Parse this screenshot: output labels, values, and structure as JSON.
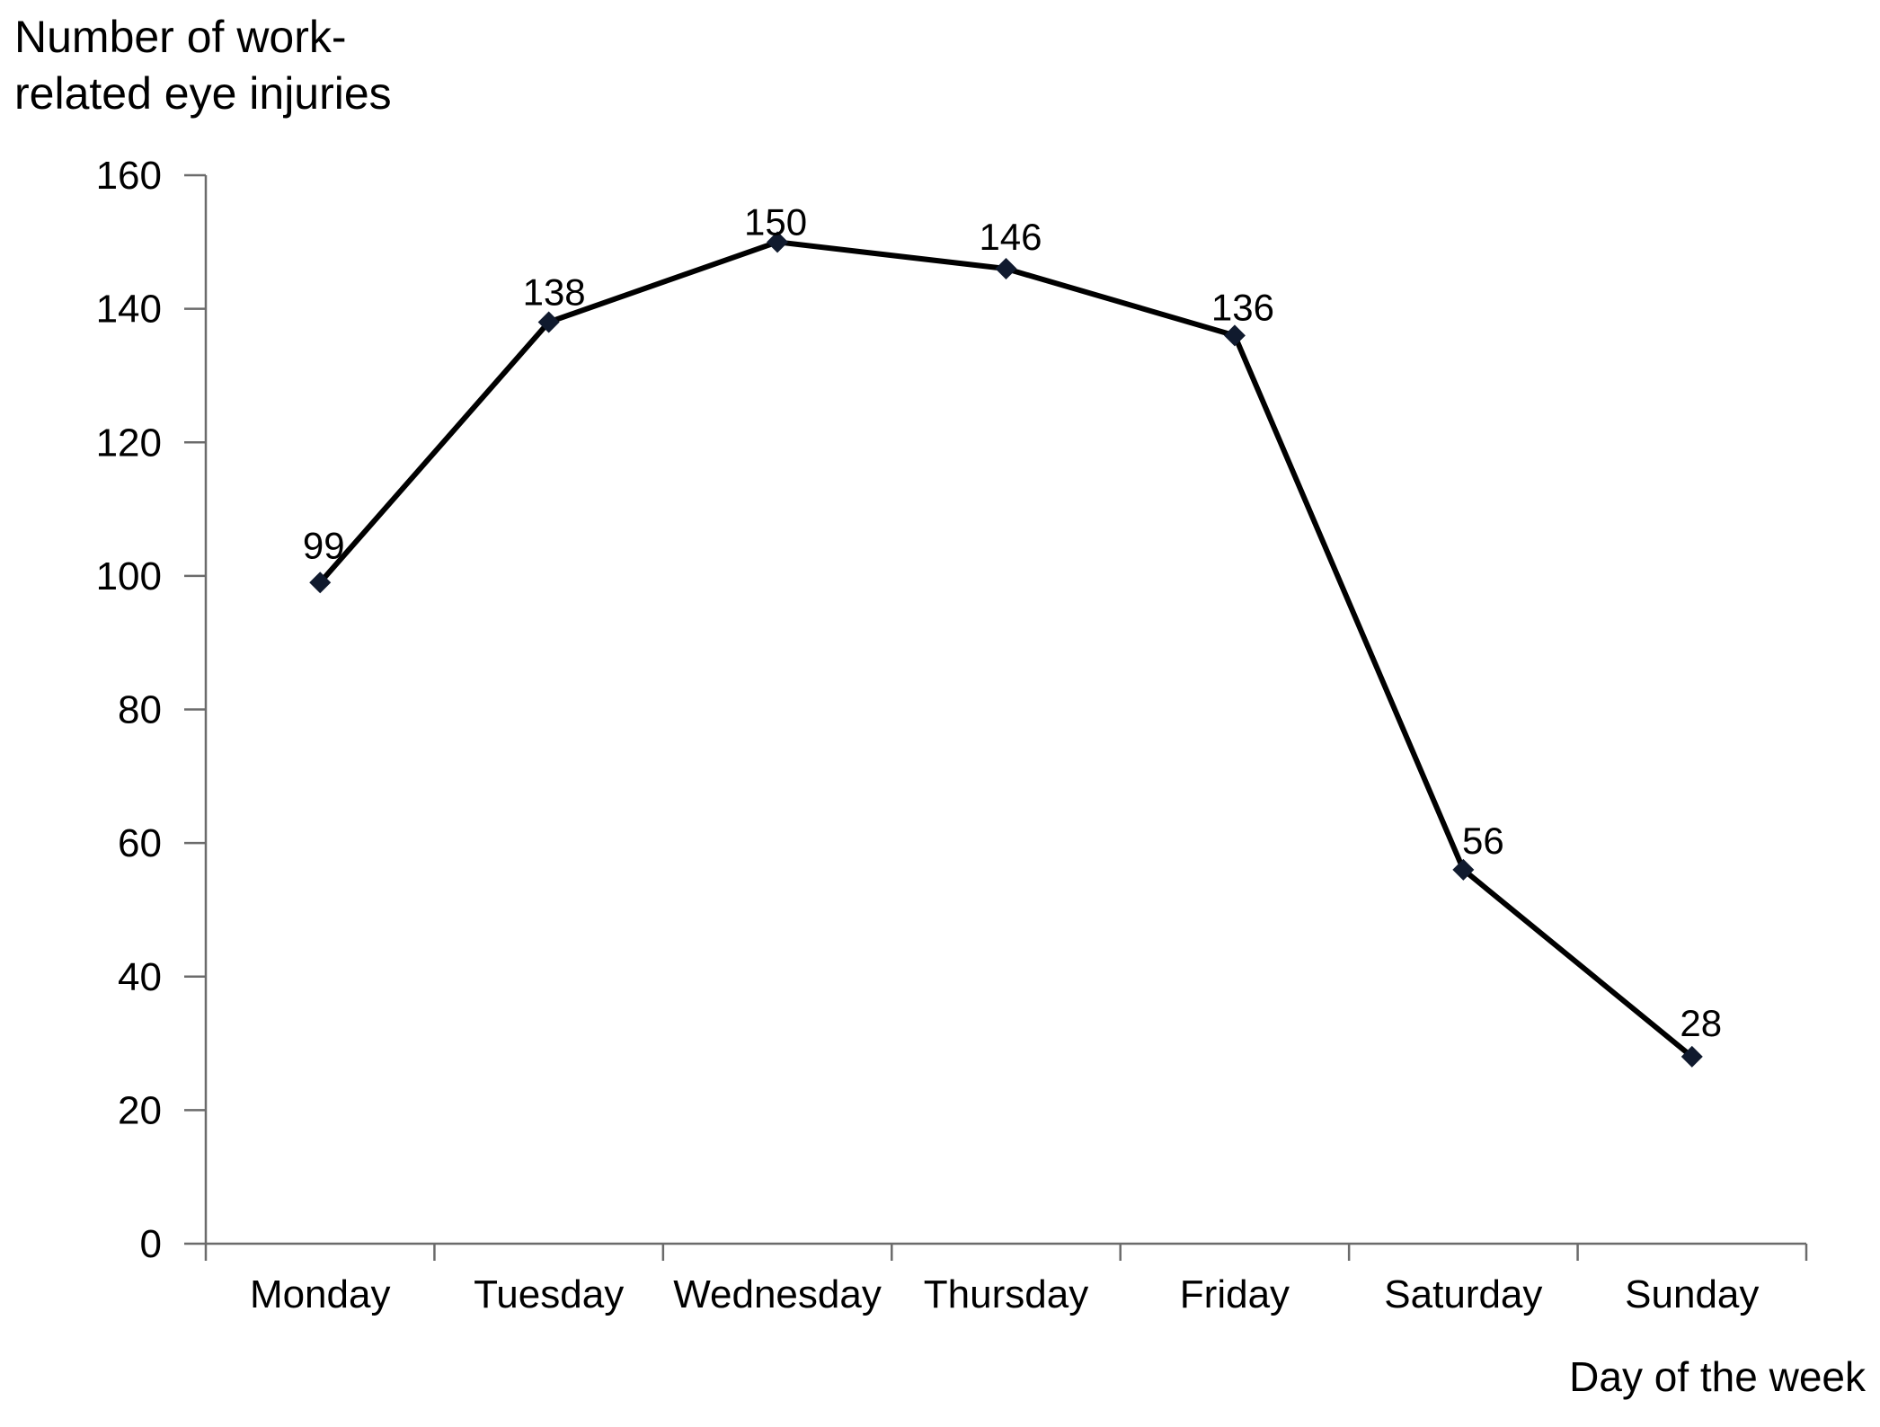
{
  "chart_data": {
    "type": "line",
    "title": "Number of work-related eye injuries",
    "title_lines": [
      "Number of work-",
      "related eye injuries"
    ],
    "xlabel": "Day of the week",
    "ylabel": "Number of work-related eye injuries",
    "categories": [
      "Monday",
      "Tuesday",
      "Wednesday",
      "Thursday",
      "Friday",
      "Saturday",
      "Sunday"
    ],
    "values": [
      99,
      138,
      150,
      146,
      136,
      56,
      28
    ],
    "series": [
      {
        "name": "Number of work-related eye injuries",
        "values": [
          99,
          138,
          150,
          146,
          136,
          56,
          28
        ]
      }
    ],
    "data_labels": [
      "99",
      "138",
      "150",
      "146",
      "136",
      "56",
      "28"
    ],
    "ylim": [
      0,
      160
    ],
    "yticks": [
      0,
      20,
      40,
      60,
      80,
      100,
      120,
      140,
      160
    ],
    "ytick_labels": [
      "0",
      "20",
      "40",
      "60",
      "80",
      "100",
      "120",
      "140",
      "160"
    ],
    "grid": false,
    "legend": "none",
    "marker": "diamond",
    "colors": {
      "line": "#000000",
      "marker": "#101a2e",
      "axis": "#6b6b6b",
      "text": "#000000",
      "background": "#ffffff"
    }
  }
}
